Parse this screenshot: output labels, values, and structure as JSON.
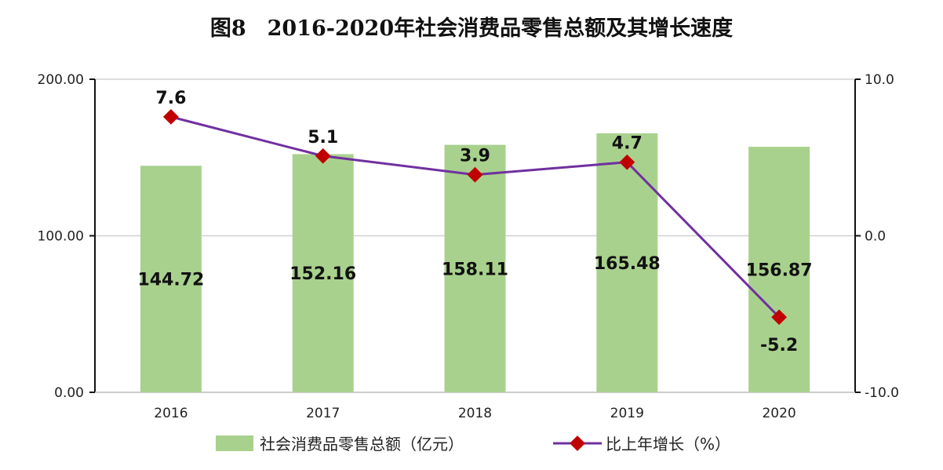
{
  "chart_data": {
    "type": "bar+line",
    "title": "图8　2016-2020年社会消费品零售总额及其增长速度",
    "categories": [
      "2016",
      "2017",
      "2018",
      "2019",
      "2020"
    ],
    "series": [
      {
        "name": "社会消费品零售总额（亿元）",
        "type": "bar",
        "axis": "left",
        "values": [
          144.72,
          152.16,
          158.11,
          165.48,
          156.87
        ],
        "labels": [
          "144.72",
          "152.16",
          "158.11",
          "165.48",
          "156.87"
        ],
        "color": "#a9d18e"
      },
      {
        "name": "比上年增长（%）",
        "type": "line",
        "axis": "right",
        "values": [
          7.6,
          5.1,
          3.9,
          4.7,
          -5.2
        ],
        "labels": [
          "7.6",
          "5.1",
          "3.9",
          "4.7",
          "-5.2"
        ],
        "color": "#7030a0",
        "marker_color": "#c00000"
      }
    ],
    "y_left": {
      "range": [
        0,
        200
      ],
      "ticks": [
        "0.00",
        "100.00",
        "200.00"
      ]
    },
    "y_right": {
      "range": [
        -10,
        10
      ],
      "ticks": [
        "-10.0",
        "0.0",
        "10.0"
      ]
    },
    "grid": true,
    "legend": "bottom"
  }
}
